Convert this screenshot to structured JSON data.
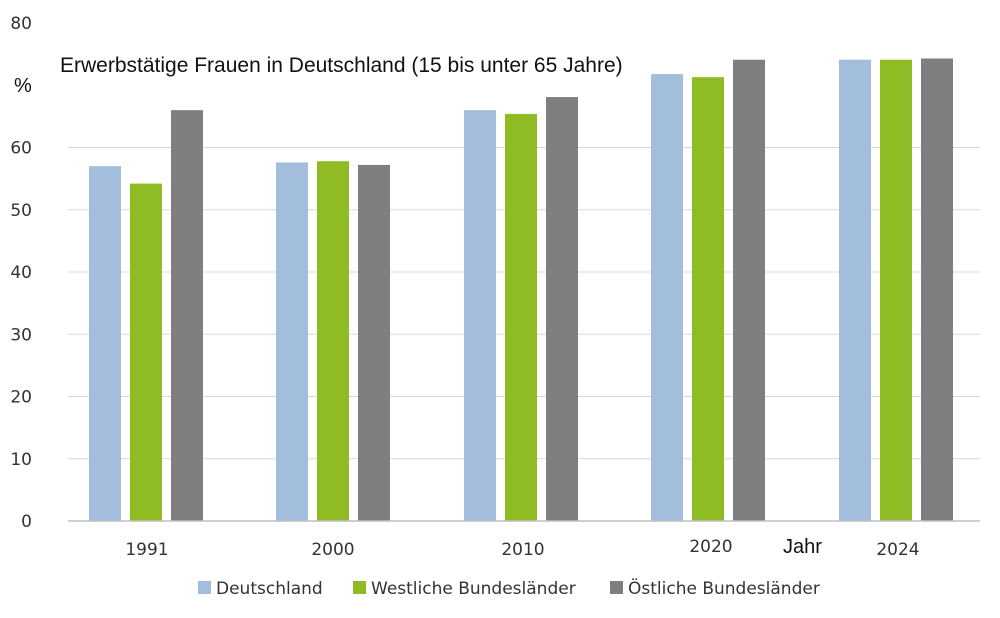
{
  "chart_data": {
    "type": "bar",
    "title": "Erwerbstätige Frauen in Deutschland (15 bis unter 65 Jahre)",
    "ylabel": "%",
    "xlabel": "Jahr",
    "categories": [
      "1991",
      "2000",
      "2010",
      "2020",
      "2024"
    ],
    "yticks": [
      "0",
      "10",
      "20",
      "30",
      "40",
      "50",
      "60",
      "80"
    ],
    "ylim": [
      0,
      80
    ],
    "grid": true,
    "legend_position": "bottom",
    "series": [
      {
        "name": "Deutschland",
        "color": "#a3bedc",
        "values": [
          57.0,
          57.6,
          66.0,
          71.8,
          74.1
        ]
      },
      {
        "name": "Westliche Bundesländer",
        "color": "#8fbc24",
        "values": [
          54.2,
          57.8,
          65.4,
          71.3,
          74.1
        ]
      },
      {
        "name": "Östliche Bundesländer",
        "color": "#7f7f7f",
        "values": [
          66.0,
          57.2,
          68.1,
          74.1,
          74.3
        ]
      }
    ]
  }
}
